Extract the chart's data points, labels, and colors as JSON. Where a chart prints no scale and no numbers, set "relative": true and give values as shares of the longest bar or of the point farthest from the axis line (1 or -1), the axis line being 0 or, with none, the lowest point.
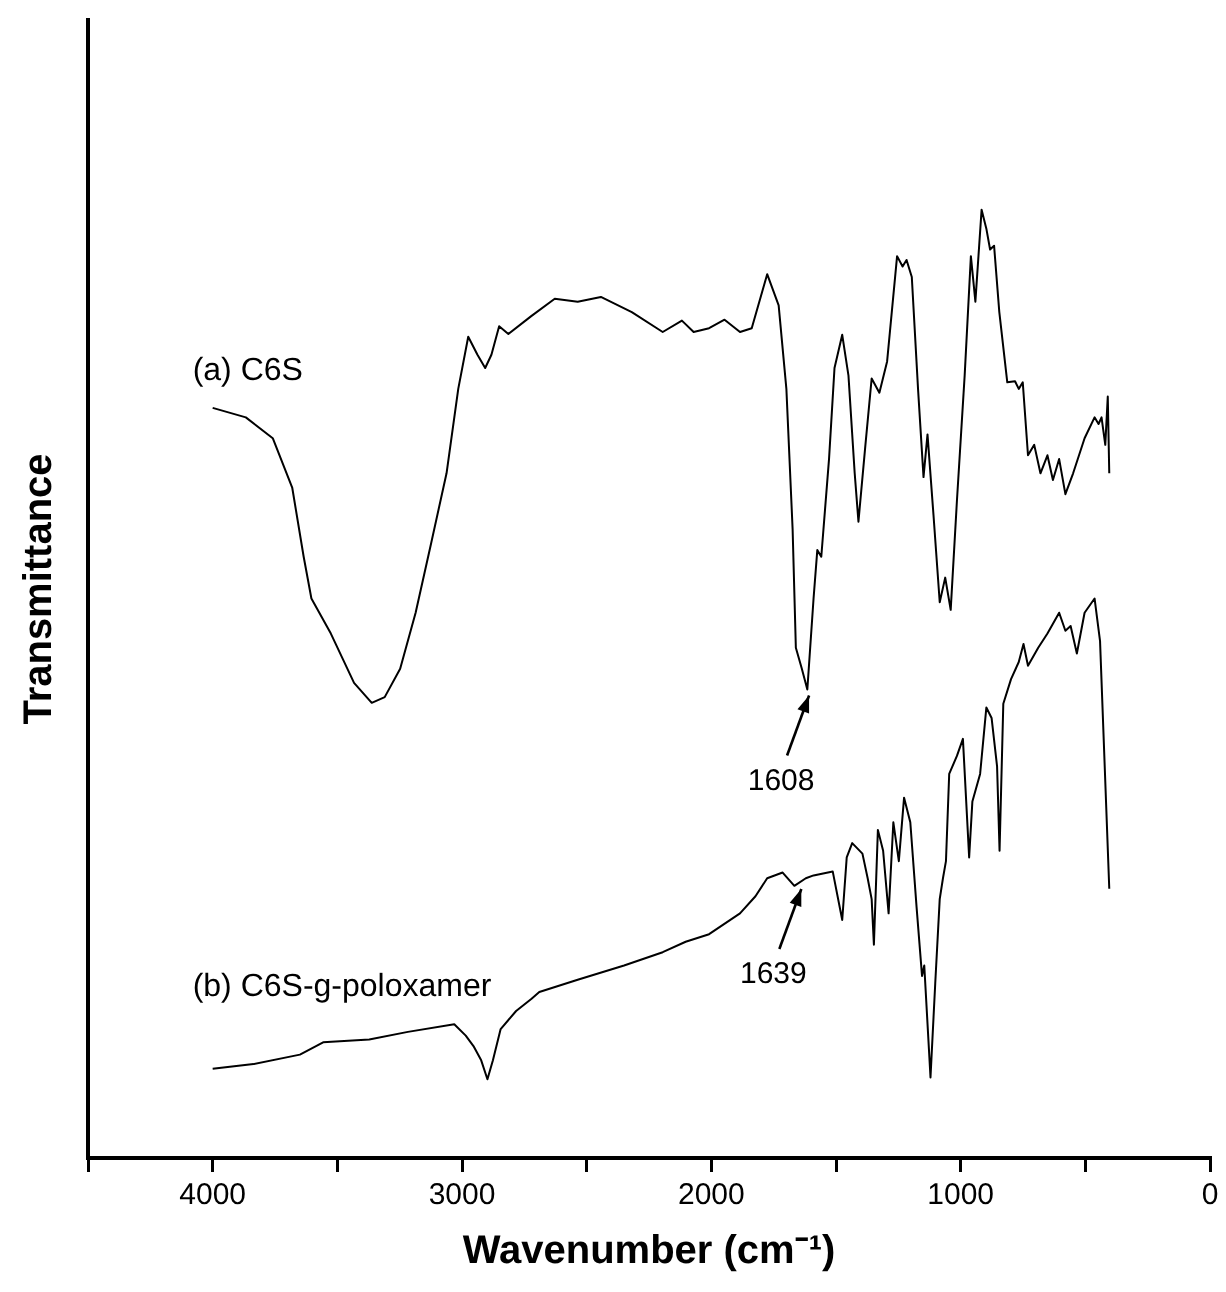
{
  "chart_data": {
    "type": "line",
    "xlabel": "Wavenumber (cm⁻¹)",
    "ylabel": "Transmittance",
    "relative": true,
    "legend": false,
    "grid": false,
    "marker": "none",
    "line_style": "solid",
    "xlim": [
      4500,
      0
    ],
    "xticks": [
      {
        "value": 4500,
        "label": null
      },
      4000,
      {
        "value": 3500,
        "label": null
      },
      3000,
      {
        "value": 2500,
        "label": null
      },
      2000,
      {
        "value": 1500,
        "label": null
      },
      1000,
      {
        "value": 500,
        "label": null
      },
      0
    ],
    "series": [
      {
        "name": "(a) C6S",
        "color": "#000000",
        "x": [
          4000,
          3867,
          3759,
          3681,
          3635,
          3604,
          3526,
          3433,
          3362,
          3310,
          3248,
          3186,
          3124,
          3062,
          3015,
          2975,
          2938,
          2907,
          2882,
          2851,
          2814,
          2721,
          2628,
          2536,
          2443,
          2319,
          2195,
          2118,
          2071,
          2009,
          1947,
          1885,
          1838,
          1776,
          1730,
          1699,
          1674,
          1661,
          1637,
          1615,
          1590,
          1575,
          1559,
          1528,
          1506,
          1475,
          1450,
          1425,
          1410,
          1382,
          1357,
          1326,
          1295,
          1255,
          1233,
          1217,
          1196,
          1171,
          1149,
          1133,
          1109,
          1084,
          1062,
          1040,
          1015,
          984,
          959,
          941,
          916,
          897,
          882,
          866,
          845,
          813,
          782,
          767,
          751,
          730,
          705,
          680,
          652,
          630,
          605,
          580,
          549,
          503,
          463,
          447,
          435,
          420,
          410,
          404
        ],
        "values": [
          0.791,
          0.781,
          0.759,
          0.707,
          0.634,
          0.59,
          0.553,
          0.501,
          0.48,
          0.486,
          0.516,
          0.575,
          0.648,
          0.722,
          0.811,
          0.866,
          0.847,
          0.833,
          0.847,
          0.877,
          0.869,
          0.888,
          0.906,
          0.903,
          0.908,
          0.892,
          0.871,
          0.883,
          0.871,
          0.875,
          0.884,
          0.871,
          0.875,
          0.932,
          0.899,
          0.811,
          0.663,
          0.538,
          0.516,
          0.494,
          0.59,
          0.641,
          0.634,
          0.737,
          0.833,
          0.868,
          0.825,
          0.722,
          0.671,
          0.752,
          0.822,
          0.807,
          0.84,
          0.951,
          0.94,
          0.947,
          0.929,
          0.811,
          0.718,
          0.763,
          0.678,
          0.586,
          0.612,
          0.578,
          0.693,
          0.825,
          0.951,
          0.903,
          1,
          0.98,
          0.958,
          0.962,
          0.892,
          0.818,
          0.819,
          0.811,
          0.818,
          0.741,
          0.752,
          0.722,
          0.741,
          0.715,
          0.737,
          0.7,
          0.722,
          0.759,
          0.781,
          0.774,
          0.781,
          0.752,
          0.803,
          0.722
        ]
      },
      {
        "name": "(b) C6S-g-poloxamer",
        "color": "#000000",
        "x": [
          4000,
          3836,
          3650,
          3557,
          3372,
          3217,
          3031,
          2985,
          2954,
          2923,
          2898,
          2876,
          2845,
          2783,
          2721,
          2690,
          2536,
          2350,
          2195,
          2103,
          2009,
          1885,
          1823,
          1776,
          1714,
          1667,
          1621,
          1590,
          1513,
          1475,
          1457,
          1435,
          1394,
          1373,
          1357,
          1348,
          1332,
          1311,
          1289,
          1270,
          1248,
          1227,
          1202,
          1177,
          1155,
          1146,
          1121,
          1102,
          1084,
          1071,
          1059,
          1046,
          1015,
          991,
          966,
          953,
          922,
          897,
          876,
          854,
          844,
          829,
          798,
          767,
          748,
          730,
          689,
          652,
          605,
          580,
          559,
          534,
          503,
          463,
          441,
          404
        ],
        "values": [
          0.094,
          0.099,
          0.109,
          0.122,
          0.125,
          0.133,
          0.141,
          0.129,
          0.118,
          0.103,
          0.083,
          0.103,
          0.136,
          0.155,
          0.168,
          0.175,
          0.188,
          0.203,
          0.217,
          0.228,
          0.236,
          0.258,
          0.276,
          0.295,
          0.301,
          0.287,
          0.295,
          0.298,
          0.302,
          0.251,
          0.317,
          0.332,
          0.321,
          0.295,
          0.273,
          0.225,
          0.346,
          0.324,
          0.258,
          0.354,
          0.313,
          0.38,
          0.354,
          0.265,
          0.192,
          0.203,
          0.085,
          0.184,
          0.273,
          0.295,
          0.313,
          0.405,
          0.424,
          0.442,
          0.317,
          0.376,
          0.405,
          0.475,
          0.464,
          0.413,
          0.324,
          0.479,
          0.505,
          0.523,
          0.542,
          0.519,
          0.538,
          0.553,
          0.575,
          0.556,
          0.561,
          0.532,
          0.575,
          0.59,
          0.545,
          0.284
        ]
      }
    ],
    "annotations": [
      {
        "text": "1608",
        "x": 1608,
        "y": 0.494
      },
      {
        "text": "1639",
        "x": 1639,
        "y": 0.29
      }
    ]
  }
}
